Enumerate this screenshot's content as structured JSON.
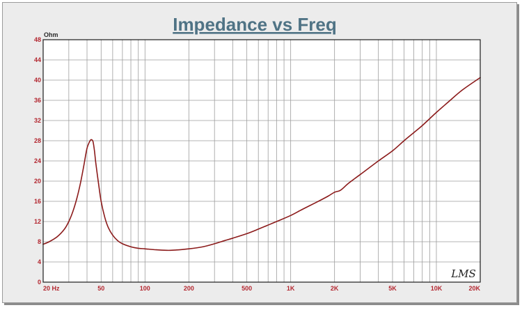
{
  "chart_data": {
    "type": "line",
    "title": "Impedance vs Freq",
    "ylabel": "Ohm",
    "xlabel": "",
    "x_scale": "log",
    "xlim": [
      20,
      20000
    ],
    "ylim": [
      0,
      48
    ],
    "grid": true,
    "y_ticks": [
      "0",
      "4",
      "8",
      "12",
      "16",
      "20",
      "24",
      "28",
      "32",
      "36",
      "40",
      "44",
      "48"
    ],
    "x_tick_labels": [
      {
        "value": 20,
        "label": "20  Hz"
      },
      {
        "value": 50,
        "label": "50"
      },
      {
        "value": 100,
        "label": "100"
      },
      {
        "value": 200,
        "label": "200"
      },
      {
        "value": 500,
        "label": "500"
      },
      {
        "value": 1000,
        "label": "1K"
      },
      {
        "value": 2000,
        "label": "2K"
      },
      {
        "value": 5000,
        "label": "5K"
      },
      {
        "value": 10000,
        "label": "10K"
      },
      {
        "value": 20000,
        "label": "20K"
      }
    ],
    "series": [
      {
        "color": "#8b1a1a",
        "x": [
          20,
          22,
          25,
          28,
          30,
          32,
          34,
          36,
          38,
          40,
          42,
          43,
          44,
          45,
          46,
          48,
          50,
          53,
          56,
          60,
          65,
          70,
          80,
          90,
          100,
          120,
          150,
          200,
          250,
          300,
          350,
          400,
          500,
          600,
          700,
          800,
          1000,
          1200,
          1500,
          1800,
          2000,
          2200,
          2500,
          3000,
          4000,
          5000,
          6000,
          7000,
          8000,
          10000,
          12000,
          15000,
          20000
        ],
        "values": [
          7.5,
          8.0,
          9.0,
          10.5,
          12.0,
          14.0,
          16.5,
          19.5,
          23.0,
          26.5,
          28.0,
          28.2,
          27.8,
          26.0,
          23.5,
          19.5,
          16.0,
          12.8,
          10.8,
          9.3,
          8.2,
          7.6,
          7.0,
          6.7,
          6.6,
          6.4,
          6.3,
          6.6,
          7.0,
          7.6,
          8.2,
          8.7,
          9.6,
          10.5,
          11.3,
          12.0,
          13.2,
          14.4,
          15.8,
          17.0,
          17.8,
          18.2,
          19.6,
          21.3,
          24.0,
          26.0,
          28.0,
          29.6,
          31.0,
          33.6,
          35.6,
          38.0,
          40.5
        ]
      }
    ]
  },
  "signature": "LMS"
}
